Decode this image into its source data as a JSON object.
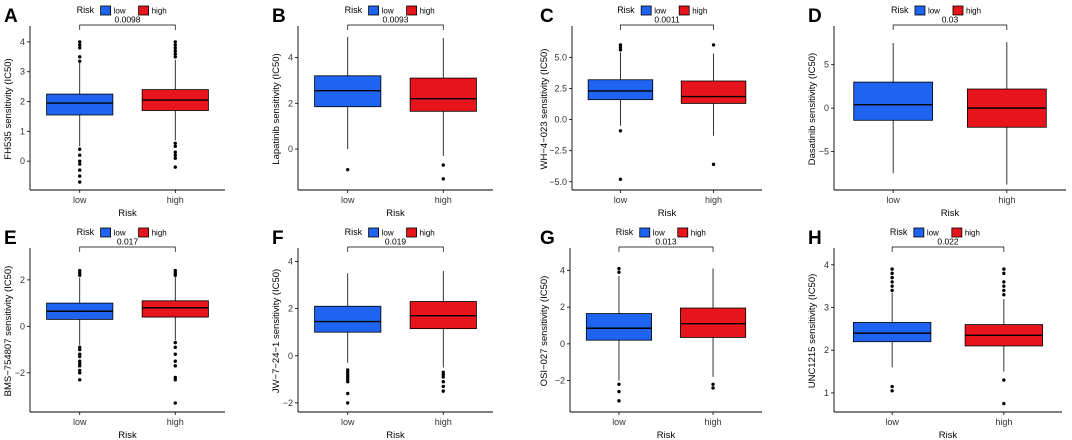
{
  "chart_data": [
    {
      "type": "box",
      "panel": "A",
      "ylabel": "FH535 sensitivity (IC50)",
      "xlabel": "Risk",
      "categories": [
        "low",
        "high"
      ],
      "ylim": [
        -0.9,
        4.4
      ],
      "yticks": [
        0,
        1,
        2,
        3,
        4
      ],
      "pvalue": "0.0098",
      "legend": {
        "title": "Risk",
        "labels": [
          "low",
          "high"
        ]
      },
      "boxes": [
        {
          "group": "low",
          "q1": 1.55,
          "median": 1.95,
          "q3": 2.25,
          "whisker_low": 0.5,
          "whisker_high": 3.3,
          "outliers": [
            3.35,
            3.5,
            3.8,
            3.9,
            4.0,
            0.4,
            0.2,
            0.0,
            -0.1,
            -0.3,
            -0.5,
            -0.7
          ]
        },
        {
          "group": "high",
          "q1": 1.7,
          "median": 2.05,
          "q3": 2.4,
          "whisker_low": 0.7,
          "whisker_high": 3.4,
          "outliers": [
            3.5,
            3.6,
            3.7,
            3.8,
            3.9,
            4.0,
            0.6,
            0.5,
            0.3,
            0.2,
            0.1,
            -0.2
          ]
        }
      ]
    },
    {
      "type": "box",
      "panel": "B",
      "ylabel": "Lapatinib sensitivity (IC50)",
      "xlabel": "Risk",
      "categories": [
        "low",
        "high"
      ],
      "ylim": [
        -1.7,
        5.2
      ],
      "yticks": [
        0,
        2,
        4
      ],
      "pvalue": "0.0093",
      "legend": {
        "title": "Risk",
        "labels": [
          "low",
          "high"
        ]
      },
      "boxes": [
        {
          "group": "low",
          "q1": 1.85,
          "median": 2.55,
          "q3": 3.2,
          "whisker_low": 0.0,
          "whisker_high": 4.9,
          "outliers": [
            -0.9
          ]
        },
        {
          "group": "high",
          "q1": 1.65,
          "median": 2.2,
          "q3": 3.1,
          "whisker_low": -0.3,
          "whisker_high": 4.85,
          "outliers": [
            -0.7,
            -1.3
          ]
        }
      ]
    },
    {
      "type": "box",
      "panel": "C",
      "ylabel": "WH−4−023 sensitivity (IC50)",
      "xlabel": "Risk",
      "categories": [
        "low",
        "high"
      ],
      "ylim": [
        -5.5,
        7.2
      ],
      "yticks": [
        -5.0,
        -2.5,
        0.0,
        2.5,
        5.0
      ],
      "yticklabels": [
        "−5.0",
        "−2.5",
        "0.0",
        "2.5",
        "5.0"
      ],
      "pvalue": "0.0011",
      "legend": {
        "title": "Risk",
        "labels": [
          "low",
          "high"
        ]
      },
      "boxes": [
        {
          "group": "low",
          "q1": 1.6,
          "median": 2.3,
          "q3": 3.2,
          "whisker_low": -0.5,
          "whisker_high": 5.4,
          "outliers": [
            5.6,
            5.8,
            6.0,
            -0.9,
            -4.8
          ]
        },
        {
          "group": "high",
          "q1": 1.3,
          "median": 1.85,
          "q3": 3.1,
          "whisker_low": -1.3,
          "whisker_high": 5.3,
          "outliers": [
            6.0,
            -3.6
          ]
        }
      ]
    },
    {
      "type": "box",
      "panel": "D",
      "ylabel": "Dasatinib sensitivity (IC50)",
      "xlabel": "Risk",
      "categories": [
        "low",
        "high"
      ],
      "ylim": [
        -9.2,
        9.0
      ],
      "yticks": [
        -5,
        0,
        5
      ],
      "yticklabels": [
        "−5",
        "0",
        "5"
      ],
      "pvalue": "0.03",
      "legend": {
        "title": "Risk",
        "labels": [
          "low",
          "high"
        ]
      },
      "boxes": [
        {
          "group": "low",
          "q1": -1.4,
          "median": 0.4,
          "q3": 3.0,
          "whisker_low": -7.5,
          "whisker_high": 7.5,
          "outliers": []
        },
        {
          "group": "high",
          "q1": -2.2,
          "median": 0.0,
          "q3": 2.2,
          "whisker_low": -8.8,
          "whisker_high": 7.6,
          "outliers": []
        }
      ]
    },
    {
      "type": "box",
      "panel": "E",
      "ylabel": "BMS−754807 sensitivity (IC50)",
      "xlabel": "Risk",
      "categories": [
        "low",
        "high"
      ],
      "ylim": [
        -3.6,
        3.2
      ],
      "yticks": [
        -2,
        0,
        2
      ],
      "yticklabels": [
        "−2",
        "0",
        "2"
      ],
      "pvalue": "0.017",
      "legend": {
        "title": "Risk",
        "labels": [
          "low",
          "high"
        ]
      },
      "boxes": [
        {
          "group": "low",
          "q1": 0.3,
          "median": 0.65,
          "q3": 1.0,
          "whisker_low": -0.8,
          "whisker_high": 2.1,
          "outliers": [
            2.2,
            2.3,
            2.4,
            -0.9,
            -1.0,
            -1.2,
            -1.3,
            -1.5,
            -1.6,
            -1.7,
            -1.9,
            -2.0,
            -2.3
          ]
        },
        {
          "group": "high",
          "q1": 0.4,
          "median": 0.8,
          "q3": 1.1,
          "whisker_low": -0.6,
          "whisker_high": 2.15,
          "outliers": [
            2.2,
            2.3,
            2.4,
            -0.7,
            -0.9,
            -1.2,
            -1.5,
            -1.7,
            -2.2,
            -2.3,
            -3.3
          ]
        }
      ]
    },
    {
      "type": "box",
      "panel": "F",
      "ylabel": "JW−7−24−1 sensitivity (IC50)",
      "xlabel": "Risk",
      "categories": [
        "low",
        "high"
      ],
      "ylim": [
        -2.3,
        4.4
      ],
      "yticks": [
        -2,
        0,
        2,
        4
      ],
      "yticklabels": [
        "−2",
        "0",
        "2",
        "4"
      ],
      "pvalue": "0.019",
      "legend": {
        "title": "Risk",
        "labels": [
          "low",
          "high"
        ]
      },
      "boxes": [
        {
          "group": "low",
          "q1": 1.0,
          "median": 1.45,
          "q3": 2.1,
          "whisker_low": -0.3,
          "whisker_high": 3.5,
          "outliers": [
            -0.6,
            -0.7,
            -0.8,
            -0.9,
            -1.0,
            -1.1,
            -1.6,
            -2.0
          ]
        },
        {
          "group": "high",
          "q1": 1.15,
          "median": 1.7,
          "q3": 2.3,
          "whisker_low": -0.5,
          "whisker_high": 3.6,
          "outliers": [
            -0.7,
            -0.8,
            -0.9,
            -1.1,
            -1.3,
            -1.5
          ]
        }
      ]
    },
    {
      "type": "box",
      "panel": "G",
      "ylabel": "OSI−027 sensitivity (IC50)",
      "xlabel": "Risk",
      "categories": [
        "low",
        "high"
      ],
      "ylim": [
        -3.6,
        5.0
      ],
      "yticks": [
        -2,
        0,
        2,
        4
      ],
      "yticklabels": [
        "−2",
        "0",
        "2",
        "4"
      ],
      "pvalue": "0.013",
      "legend": {
        "title": "Risk",
        "labels": [
          "low",
          "high"
        ]
      },
      "boxes": [
        {
          "group": "low",
          "q1": 0.2,
          "median": 0.85,
          "q3": 1.65,
          "whisker_low": -2.0,
          "whisker_high": 3.7,
          "outliers": [
            3.9,
            4.1,
            -2.2,
            -2.6,
            -3.1
          ]
        },
        {
          "group": "high",
          "q1": 0.35,
          "median": 1.1,
          "q3": 1.95,
          "whisker_low": -1.8,
          "whisker_high": 4.1,
          "outliers": [
            -2.2,
            -2.4
          ]
        }
      ]
    },
    {
      "type": "box",
      "panel": "H",
      "ylabel": "UNC1215 sensitivity (IC50)",
      "xlabel": "Risk",
      "categories": [
        "low",
        "high"
      ],
      "ylim": [
        0.6,
        4.3
      ],
      "yticks": [
        1,
        2,
        3,
        4
      ],
      "pvalue": "0.022",
      "legend": {
        "title": "Risk",
        "labels": [
          "low",
          "high"
        ]
      },
      "boxes": [
        {
          "group": "low",
          "q1": 2.2,
          "median": 2.4,
          "q3": 2.65,
          "whisker_low": 1.6,
          "whisker_high": 3.35,
          "outliers": [
            3.4,
            3.5,
            3.6,
            3.7,
            3.8,
            3.9,
            1.15,
            1.05
          ]
        },
        {
          "group": "high",
          "q1": 2.1,
          "median": 2.35,
          "q3": 2.6,
          "whisker_low": 1.5,
          "whisker_high": 3.2,
          "outliers": [
            3.3,
            3.4,
            3.5,
            3.6,
            3.8,
            3.9,
            1.3,
            0.75
          ]
        }
      ]
    }
  ],
  "colors": {
    "low": "#1e64f0",
    "high": "#e8141b"
  }
}
